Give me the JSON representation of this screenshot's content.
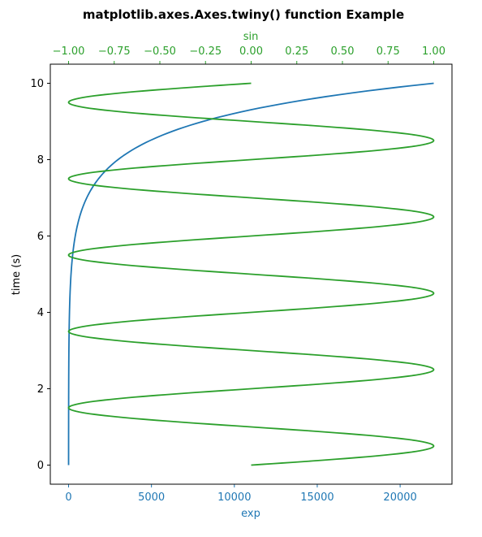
{
  "chart_data": {
    "type": "line",
    "title": "matplotlib.axes.Axes.twiny() function Example",
    "ylabel": "time (s)",
    "bottom_axis": {
      "label": "exp",
      "color": "#1f77b4",
      "ticks": [
        0,
        5000,
        10000,
        15000,
        20000
      ],
      "tick_labels": [
        "0",
        "5000",
        "10000",
        "15000",
        "20000"
      ],
      "lim": [
        -1101.3,
        23127.3
      ]
    },
    "top_axis": {
      "label": "sin",
      "color": "#2ca02c",
      "ticks": [
        -1.0,
        -0.75,
        -0.5,
        -0.25,
        0.0,
        0.25,
        0.5,
        0.75,
        1.0
      ],
      "tick_labels": [
        "−1.00",
        "−0.75",
        "−0.50",
        "−0.25",
        "0.00",
        "0.25",
        "0.50",
        "0.75",
        "1.00"
      ],
      "lim": [
        -1.1,
        1.1
      ]
    },
    "y_axis": {
      "ticks": [
        0,
        2,
        4,
        6,
        8,
        10
      ],
      "tick_labels": [
        "0",
        "2",
        "4",
        "6",
        "8",
        "10"
      ],
      "lim": [
        -0.5,
        10.5
      ]
    },
    "grid": false,
    "series": [
      {
        "axis": "bottom",
        "color": "#1f77b4",
        "points": [
          [
            1.0,
            0
          ],
          [
            1.6,
            0.5
          ],
          [
            2.7,
            1
          ],
          [
            4.5,
            1.5
          ],
          [
            7.4,
            2
          ],
          [
            12.2,
            2.5
          ],
          [
            20.1,
            3
          ],
          [
            33.1,
            3.5
          ],
          [
            54.6,
            4
          ],
          [
            90.0,
            4.5
          ],
          [
            148.4,
            5
          ],
          [
            244.7,
            5.5
          ],
          [
            403.4,
            6
          ],
          [
            665.1,
            6.5
          ],
          [
            1096.6,
            7
          ],
          [
            1808.0,
            7.5
          ],
          [
            2981.0,
            8
          ],
          [
            4914.8,
            8.5
          ],
          [
            8103.1,
            9
          ],
          [
            13359.7,
            9.5
          ],
          [
            22026.5,
            10
          ]
        ]
      },
      {
        "axis": "top",
        "color": "#2ca02c",
        "points": [
          [
            0.0,
            0
          ],
          [
            0.383,
            0.125
          ],
          [
            0.707,
            0.25
          ],
          [
            0.924,
            0.375
          ],
          [
            1.0,
            0.5
          ],
          [
            0.924,
            0.625
          ],
          [
            0.707,
            0.75
          ],
          [
            0.383,
            0.875
          ],
          [
            0.0,
            1
          ],
          [
            -0.383,
            1.125
          ],
          [
            -0.707,
            1.25
          ],
          [
            -0.924,
            1.375
          ],
          [
            -1.0,
            1.5
          ],
          [
            -0.924,
            1.625
          ],
          [
            -0.707,
            1.75
          ],
          [
            -0.383,
            1.875
          ],
          [
            0.0,
            2
          ],
          [
            0.383,
            2.125
          ],
          [
            0.707,
            2.25
          ],
          [
            0.924,
            2.375
          ],
          [
            1.0,
            2.5
          ],
          [
            0.924,
            2.625
          ],
          [
            0.707,
            2.75
          ],
          [
            0.383,
            2.875
          ],
          [
            0.0,
            3
          ],
          [
            -0.383,
            3.125
          ],
          [
            -0.707,
            3.25
          ],
          [
            -0.924,
            3.375
          ],
          [
            -1.0,
            3.5
          ],
          [
            -0.924,
            3.625
          ],
          [
            -0.707,
            3.75
          ],
          [
            -0.383,
            3.875
          ],
          [
            0.0,
            4
          ],
          [
            0.383,
            4.125
          ],
          [
            0.707,
            4.25
          ],
          [
            0.924,
            4.375
          ],
          [
            1.0,
            4.5
          ],
          [
            0.924,
            4.625
          ],
          [
            0.707,
            4.75
          ],
          [
            0.383,
            4.875
          ],
          [
            0.0,
            5
          ],
          [
            -0.383,
            5.125
          ],
          [
            -0.707,
            5.25
          ],
          [
            -0.924,
            5.375
          ],
          [
            -1.0,
            5.5
          ],
          [
            -0.924,
            5.625
          ],
          [
            -0.707,
            5.75
          ],
          [
            -0.383,
            5.875
          ],
          [
            0.0,
            6
          ],
          [
            0.383,
            6.125
          ],
          [
            0.707,
            6.25
          ],
          [
            0.924,
            6.375
          ],
          [
            1.0,
            6.5
          ],
          [
            0.924,
            6.625
          ],
          [
            0.707,
            6.75
          ],
          [
            0.383,
            6.875
          ],
          [
            0.0,
            7
          ],
          [
            -0.383,
            7.125
          ],
          [
            -0.707,
            7.25
          ],
          [
            -0.924,
            7.375
          ],
          [
            -1.0,
            7.5
          ],
          [
            -0.924,
            7.625
          ],
          [
            -0.707,
            7.75
          ],
          [
            -0.383,
            7.875
          ],
          [
            0.0,
            8
          ],
          [
            0.383,
            8.125
          ],
          [
            0.707,
            8.25
          ],
          [
            0.924,
            8.375
          ],
          [
            1.0,
            8.5
          ],
          [
            0.924,
            8.625
          ],
          [
            0.707,
            8.75
          ],
          [
            0.383,
            8.875
          ],
          [
            0.0,
            9
          ],
          [
            -0.383,
            9.125
          ],
          [
            -0.707,
            9.25
          ],
          [
            -0.924,
            9.375
          ],
          [
            -1.0,
            9.5
          ],
          [
            -0.924,
            9.625
          ],
          [
            -0.707,
            9.75
          ],
          [
            -0.383,
            9.875
          ],
          [
            0.0,
            10
          ]
        ]
      }
    ]
  }
}
